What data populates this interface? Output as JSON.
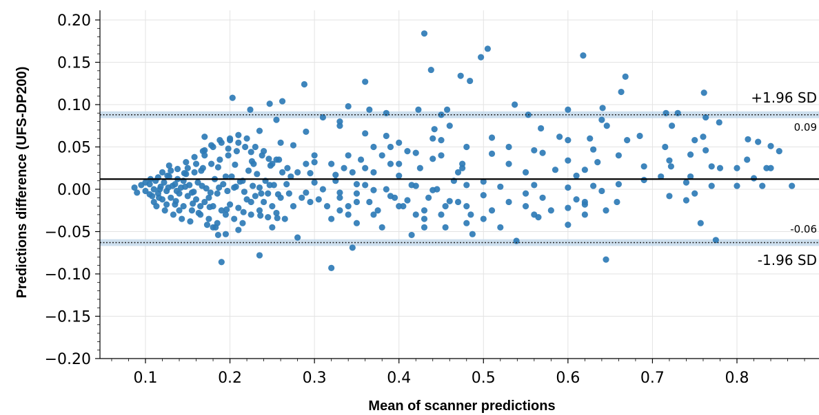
{
  "chart_data": {
    "type": "scatter",
    "xlabel": "Mean of scanner predictions",
    "ylabel": "Predictions difference (UFS-DP200)",
    "xlim": [
      0.05,
      0.895
    ],
    "ylim": [
      -0.2,
      0.21
    ],
    "x_ticks": [
      0.1,
      0.2,
      0.3,
      0.4,
      0.5,
      0.6,
      0.7,
      0.8
    ],
    "x_tick_labels": [
      "0.1",
      "0.2",
      "0.3",
      "0.4",
      "0.5",
      "0.6",
      "0.7",
      "0.8"
    ],
    "y_ticks": [
      0.2,
      0.15,
      0.1,
      0.05,
      0.0,
      -0.05,
      -0.1,
      -0.15,
      -0.2
    ],
    "y_tick_labels": [
      "0.20",
      "0.15",
      "0.10",
      "0.05",
      "0.00",
      "−0.05",
      "−0.10",
      "−0.15",
      "−0.20"
    ],
    "grid": true,
    "colors": {
      "points": "#2e7bb6",
      "bands": "#bcd4e8",
      "mean_line": "#000000"
    },
    "mean_line": 0.012,
    "upper_loa": {
      "value": 0.088,
      "label": "+1.96 SD",
      "value_label": "0.09",
      "ci": [
        0.084,
        0.092
      ]
    },
    "lower_loa": {
      "value": -0.063,
      "label": "-1.96 SD",
      "value_label": "-0.06",
      "ci": [
        -0.067,
        -0.059
      ]
    },
    "points": [
      [
        0.43,
        0.184
      ],
      [
        0.505,
        0.166
      ],
      [
        0.497,
        0.156
      ],
      [
        0.618,
        0.158
      ],
      [
        0.438,
        0.141
      ],
      [
        0.473,
        0.134
      ],
      [
        0.668,
        0.133
      ],
      [
        0.484,
        0.128
      ],
      [
        0.36,
        0.127
      ],
      [
        0.288,
        0.124
      ],
      [
        0.663,
        0.115
      ],
      [
        0.761,
        0.114
      ],
      [
        0.203,
        0.108
      ],
      [
        0.262,
        0.104
      ],
      [
        0.247,
        0.101
      ],
      [
        0.537,
        0.1
      ],
      [
        0.34,
        0.098
      ],
      [
        0.224,
        0.094
      ],
      [
        0.365,
        0.094
      ],
      [
        0.423,
        0.094
      ],
      [
        0.457,
        0.094
      ],
      [
        0.6,
        0.094
      ],
      [
        0.641,
        0.096
      ],
      [
        0.716,
        0.09
      ],
      [
        0.73,
        0.09
      ],
      [
        0.385,
        0.09
      ],
      [
        0.553,
        0.088
      ],
      [
        0.45,
        0.088
      ],
      [
        0.31,
        0.085
      ],
      [
        0.763,
        0.085
      ],
      [
        0.255,
        0.082
      ],
      [
        0.33,
        0.08
      ],
      [
        0.64,
        0.082
      ],
      [
        0.779,
        0.079
      ],
      [
        0.723,
        0.075
      ],
      [
        0.33,
        0.075
      ],
      [
        0.568,
        0.072
      ],
      [
        0.646,
        0.075
      ],
      [
        0.442,
        0.071
      ],
      [
        0.17,
        0.062
      ],
      [
        0.235,
        0.069
      ],
      [
        0.29,
        0.068
      ],
      [
        0.36,
        0.066
      ],
      [
        0.21,
        0.064
      ],
      [
        0.385,
        0.063
      ],
      [
        0.51,
        0.061
      ],
      [
        0.59,
        0.062
      ],
      [
        0.685,
        0.063
      ],
      [
        0.626,
        0.06
      ],
      [
        0.813,
        0.059
      ],
      [
        0.67,
        0.058
      ],
      [
        0.76,
        0.062
      ],
      [
        0.45,
        0.058
      ],
      [
        0.2,
        0.058
      ],
      [
        0.26,
        0.055
      ],
      [
        0.4,
        0.055
      ],
      [
        0.53,
        0.05
      ],
      [
        0.6,
        0.058
      ],
      [
        0.75,
        0.058
      ],
      [
        0.825,
        0.056
      ],
      [
        0.275,
        0.052
      ],
      [
        0.37,
        0.05
      ],
      [
        0.48,
        0.05
      ],
      [
        0.56,
        0.046
      ],
      [
        0.42,
        0.043
      ],
      [
        0.63,
        0.047
      ],
      [
        0.715,
        0.05
      ],
      [
        0.763,
        0.046
      ],
      [
        0.84,
        0.051
      ],
      [
        0.17,
        0.046
      ],
      [
        0.225,
        0.044
      ],
      [
        0.34,
        0.04
      ],
      [
        0.51,
        0.042
      ],
      [
        0.57,
        0.043
      ],
      [
        0.66,
        0.04
      ],
      [
        0.745,
        0.041
      ],
      [
        0.85,
        0.045
      ],
      [
        0.44,
        0.036
      ],
      [
        0.3,
        0.032
      ],
      [
        0.255,
        0.035
      ],
      [
        0.6,
        0.034
      ],
      [
        0.635,
        0.032
      ],
      [
        0.72,
        0.034
      ],
      [
        0.812,
        0.035
      ],
      [
        0.39,
        0.03
      ],
      [
        0.53,
        0.03
      ],
      [
        0.69,
        0.027
      ],
      [
        0.78,
        0.025
      ],
      [
        0.835,
        0.025
      ],
      [
        0.36,
        0.025
      ],
      [
        0.475,
        0.025
      ],
      [
        0.585,
        0.023
      ],
      [
        0.62,
        0.023
      ],
      [
        0.722,
        0.027
      ],
      [
        0.77,
        0.027
      ],
      [
        0.8,
        0.025
      ],
      [
        0.84,
        0.025
      ],
      [
        0.47,
        0.02
      ],
      [
        0.55,
        0.02
      ],
      [
        0.61,
        0.016
      ],
      [
        0.71,
        0.015
      ],
      [
        0.295,
        0.019
      ],
      [
        0.325,
        0.017
      ],
      [
        0.4,
        0.016
      ],
      [
        0.745,
        0.015
      ],
      [
        0.82,
        0.013
      ],
      [
        0.865,
        0.004
      ],
      [
        0.5,
        0.009
      ],
      [
        0.63,
        0.004
      ],
      [
        0.66,
        0.006
      ],
      [
        0.77,
        0.004
      ],
      [
        0.8,
        0.004
      ],
      [
        0.69,
        0.011
      ],
      [
        0.74,
        0.008
      ],
      [
        0.83,
        0.004
      ],
      [
        0.3,
        0.008
      ],
      [
        0.35,
        0.006
      ],
      [
        0.42,
        0.004
      ],
      [
        0.52,
        0.003
      ],
      [
        0.56,
        0.005
      ],
      [
        0.6,
        0.002
      ],
      [
        0.37,
        -0.001
      ],
      [
        0.44,
        -0.001
      ],
      [
        0.55,
        -0.005
      ],
      [
        0.64,
        -0.002
      ],
      [
        0.75,
        -0.005
      ],
      [
        0.33,
        -0.004
      ],
      [
        0.29,
        -0.004
      ],
      [
        0.39,
        -0.008
      ],
      [
        0.5,
        -0.007
      ],
      [
        0.57,
        -0.01
      ],
      [
        0.61,
        -0.012
      ],
      [
        0.72,
        -0.008
      ],
      [
        0.305,
        -0.012
      ],
      [
        0.35,
        -0.015
      ],
      [
        0.41,
        -0.013
      ],
      [
        0.46,
        -0.014
      ],
      [
        0.53,
        -0.015
      ],
      [
        0.62,
        -0.015
      ],
      [
        0.658,
        -0.015
      ],
      [
        0.74,
        -0.013
      ],
      [
        0.34,
        -0.02
      ],
      [
        0.4,
        -0.02
      ],
      [
        0.48,
        -0.02
      ],
      [
        0.55,
        -0.02
      ],
      [
        0.6,
        -0.022
      ],
      [
        0.62,
        -0.018
      ],
      [
        0.33,
        -0.025
      ],
      [
        0.43,
        -0.025
      ],
      [
        0.51,
        -0.025
      ],
      [
        0.58,
        -0.025
      ],
      [
        0.645,
        -0.025
      ],
      [
        0.37,
        -0.03
      ],
      [
        0.45,
        -0.03
      ],
      [
        0.56,
        -0.03
      ],
      [
        0.62,
        -0.03
      ],
      [
        0.32,
        -0.035
      ],
      [
        0.43,
        -0.035
      ],
      [
        0.5,
        -0.035
      ],
      [
        0.565,
        -0.033
      ],
      [
        0.35,
        -0.04
      ],
      [
        0.48,
        -0.04
      ],
      [
        0.6,
        -0.042
      ],
      [
        0.757,
        -0.04
      ],
      [
        0.38,
        -0.045
      ],
      [
        0.43,
        -0.045
      ],
      [
        0.455,
        -0.045
      ],
      [
        0.52,
        -0.045
      ],
      [
        0.28,
        -0.057
      ],
      [
        0.415,
        -0.054
      ],
      [
        0.487,
        -0.053
      ],
      [
        0.539,
        -0.061
      ],
      [
        0.775,
        -0.06
      ],
      [
        0.345,
        -0.069
      ],
      [
        0.235,
        -0.078
      ],
      [
        0.19,
        -0.086
      ],
      [
        0.32,
        -0.093
      ],
      [
        0.645,
        -0.083
      ],
      [
        0.186,
        -0.054
      ],
      [
        0.18,
        -0.045
      ],
      [
        0.21,
        -0.048
      ],
      [
        0.25,
        -0.045
      ],
      [
        0.195,
        -0.053
      ],
      [
        0.087,
        0.002
      ],
      [
        0.09,
        -0.004
      ],
      [
        0.1,
        -0.002
      ],
      [
        0.105,
        0.006
      ],
      [
        0.108,
        -0.008
      ],
      [
        0.11,
        0.0
      ],
      [
        0.112,
        0.01
      ],
      [
        0.115,
        -0.005
      ],
      [
        0.118,
        0.003
      ],
      [
        0.12,
        -0.012
      ],
      [
        0.122,
        0.008
      ],
      [
        0.125,
        -0.002
      ],
      [
        0.128,
        0.015
      ],
      [
        0.13,
        -0.01
      ],
      [
        0.132,
        0.004
      ],
      [
        0.135,
        -0.018
      ],
      [
        0.138,
        0.012
      ],
      [
        0.14,
        -0.005
      ],
      [
        0.142,
        0.002
      ],
      [
        0.145,
        -0.02
      ],
      [
        0.148,
        0.018
      ],
      [
        0.15,
        -0.008
      ],
      [
        0.152,
        0.005
      ],
      [
        0.155,
        -0.025
      ],
      [
        0.158,
        0.02
      ],
      [
        0.16,
        -0.012
      ],
      [
        0.162,
        0.008
      ],
      [
        0.165,
        -0.03
      ],
      [
        0.168,
        0.025
      ],
      [
        0.17,
        -0.015
      ],
      [
        0.172,
        0.001
      ],
      [
        0.175,
        -0.035
      ],
      [
        0.178,
        0.03
      ],
      [
        0.18,
        -0.02
      ],
      [
        0.182,
        0.012
      ],
      [
        0.185,
        -0.04
      ],
      [
        0.188,
        0.035
      ],
      [
        0.19,
        -0.025
      ],
      [
        0.192,
        0.006
      ],
      [
        0.195,
        -0.03
      ],
      [
        0.198,
        0.04
      ],
      [
        0.2,
        -0.018
      ],
      [
        0.202,
        0.015
      ],
      [
        0.205,
        -0.035
      ],
      [
        0.208,
        0.045
      ],
      [
        0.21,
        -0.022
      ],
      [
        0.212,
        0.009
      ],
      [
        0.215,
        -0.04
      ],
      [
        0.218,
        0.05
      ],
      [
        0.22,
        -0.012
      ],
      [
        0.222,
        0.022
      ],
      [
        0.225,
        -0.03
      ],
      [
        0.228,
        0.03
      ],
      [
        0.23,
        -0.008
      ],
      [
        0.232,
        0.018
      ],
      [
        0.235,
        -0.025
      ],
      [
        0.238,
        0.04
      ],
      [
        0.24,
        -0.015
      ],
      [
        0.242,
        0.01
      ],
      [
        0.245,
        -0.033
      ],
      [
        0.248,
        0.028
      ],
      [
        0.25,
        -0.02
      ],
      [
        0.252,
        0.005
      ],
      [
        0.255,
        -0.028
      ],
      [
        0.258,
        0.035
      ],
      [
        0.26,
        -0.01
      ],
      [
        0.262,
        0.02
      ],
      [
        0.265,
        -0.035
      ],
      [
        0.268,
        0.025
      ],
      [
        0.27,
        -0.005
      ],
      [
        0.272,
        0.015
      ],
      [
        0.275,
        -0.02
      ],
      [
        0.095,
        0.005
      ],
      [
        0.1,
        0.008
      ],
      [
        0.105,
        -0.006
      ],
      [
        0.11,
        -0.015
      ],
      [
        0.115,
        0.014
      ],
      [
        0.12,
        0.02
      ],
      [
        0.125,
        -0.018
      ],
      [
        0.13,
        0.022
      ],
      [
        0.135,
        0.006
      ],
      [
        0.14,
        -0.025
      ],
      [
        0.145,
        0.01
      ],
      [
        0.15,
        0.025
      ],
      [
        0.155,
        -0.004
      ],
      [
        0.16,
        0.03
      ],
      [
        0.165,
        -0.02
      ],
      [
        0.17,
        0.04
      ],
      [
        0.175,
        -0.01
      ],
      [
        0.18,
        0.05
      ],
      [
        0.185,
        -0.005
      ],
      [
        0.19,
        0.055
      ],
      [
        0.195,
        0.015
      ],
      [
        0.2,
        0.06
      ],
      [
        0.205,
        0.002
      ],
      [
        0.21,
        0.055
      ],
      [
        0.215,
        0.01
      ],
      [
        0.22,
        0.06
      ],
      [
        0.225,
        -0.015
      ],
      [
        0.23,
        0.05
      ],
      [
        0.235,
        0.002
      ],
      [
        0.24,
        0.045
      ],
      [
        0.245,
        -0.005
      ],
      [
        0.25,
        0.03
      ],
      [
        0.113,
        -0.02
      ],
      [
        0.123,
        -0.025
      ],
      [
        0.133,
        -0.03
      ],
      [
        0.143,
        -0.035
      ],
      [
        0.153,
        -0.038
      ],
      [
        0.163,
        -0.028
      ],
      [
        0.173,
        -0.042
      ],
      [
        0.183,
        -0.045
      ],
      [
        0.128,
        0.028
      ],
      [
        0.138,
        0.024
      ],
      [
        0.148,
        0.032
      ],
      [
        0.158,
        0.038
      ],
      [
        0.168,
        0.045
      ],
      [
        0.178,
        0.052
      ],
      [
        0.188,
        0.058
      ],
      [
        0.198,
        0.048
      ],
      [
        0.117,
        0.0
      ],
      [
        0.127,
        0.002
      ],
      [
        0.137,
        -0.002
      ],
      [
        0.147,
        0.003
      ],
      [
        0.157,
        -0.003
      ],
      [
        0.167,
        0.004
      ],
      [
        0.177,
        -0.004
      ],
      [
        0.187,
        0.002
      ],
      [
        0.197,
        -0.002
      ],
      [
        0.207,
        0.003
      ],
      [
        0.217,
        -0.003
      ],
      [
        0.227,
        0.004
      ],
      [
        0.237,
        -0.005
      ],
      [
        0.247,
        0.005
      ],
      [
        0.257,
        -0.006
      ],
      [
        0.267,
        0.006
      ],
      [
        0.106,
        0.012
      ],
      [
        0.116,
        -0.01
      ],
      [
        0.126,
        0.016
      ],
      [
        0.136,
        -0.014
      ],
      [
        0.146,
        0.019
      ],
      [
        0.156,
        -0.017
      ],
      [
        0.166,
        0.022
      ],
      [
        0.176,
        -0.021
      ],
      [
        0.186,
        0.026
      ],
      [
        0.196,
        -0.024
      ],
      [
        0.206,
        0.029
      ],
      [
        0.216,
        -0.027
      ],
      [
        0.226,
        0.033
      ],
      [
        0.236,
        -0.031
      ],
      [
        0.246,
        0.036
      ],
      [
        0.256,
        -0.034
      ],
      [
        0.28,
        0.02
      ],
      [
        0.285,
        -0.01
      ],
      [
        0.29,
        0.03
      ],
      [
        0.295,
        -0.015
      ],
      [
        0.3,
        0.04
      ],
      [
        0.31,
        0.0
      ],
      [
        0.315,
        -0.02
      ],
      [
        0.32,
        0.03
      ],
      [
        0.325,
        0.01
      ],
      [
        0.33,
        -0.01
      ],
      [
        0.335,
        0.025
      ],
      [
        0.34,
        -0.03
      ],
      [
        0.345,
        0.02
      ],
      [
        0.35,
        -0.005
      ],
      [
        0.355,
        0.035
      ],
      [
        0.36,
        0.005
      ],
      [
        0.365,
        -0.015
      ],
      [
        0.37,
        0.02
      ],
      [
        0.375,
        -0.025
      ],
      [
        0.38,
        0.04
      ],
      [
        0.385,
        0.0
      ],
      [
        0.39,
        0.05
      ],
      [
        0.395,
        -0.01
      ],
      [
        0.4,
        0.03
      ],
      [
        0.405,
        -0.02
      ],
      [
        0.41,
        0.045
      ],
      [
        0.415,
        0.005
      ],
      [
        0.42,
        -0.03
      ],
      [
        0.425,
        0.025
      ],
      [
        0.435,
        -0.01
      ],
      [
        0.44,
        0.06
      ],
      [
        0.445,
        0.0
      ],
      [
        0.45,
        0.04
      ],
      [
        0.455,
        -0.02
      ],
      [
        0.46,
        0.075
      ],
      [
        0.465,
        0.01
      ],
      [
        0.47,
        -0.015
      ],
      [
        0.475,
        0.03
      ],
      [
        0.48,
        0.005
      ],
      [
        0.485,
        -0.03
      ]
    ]
  }
}
